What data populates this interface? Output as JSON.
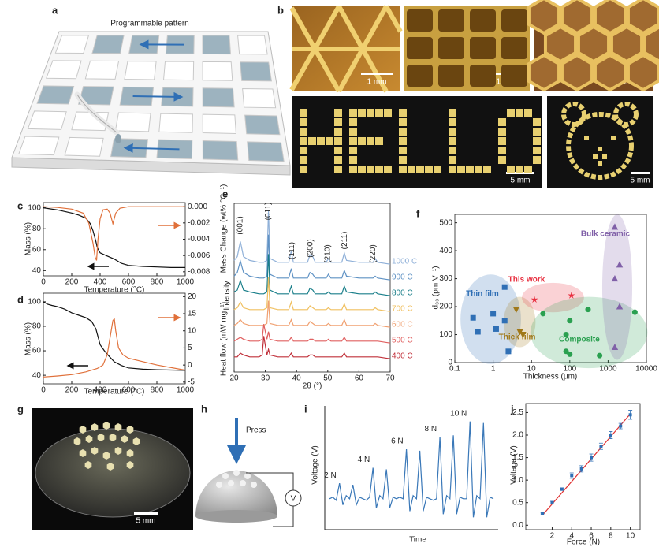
{
  "panel_labels": [
    "a",
    "b",
    "c",
    "d",
    "e",
    "f",
    "g",
    "h",
    "i",
    "j"
  ],
  "a": {
    "caption": "Programmable pattern"
  },
  "b": {
    "scale_bars": [
      "1 mm",
      "1 mm",
      "1 mm",
      "5 mm",
      "5 mm"
    ]
  },
  "g": {
    "scale_bar": "5 mm"
  },
  "h": {
    "press": "Press",
    "meter": "V"
  },
  "chart_data": [
    {
      "type": "line",
      "xlabel": "Temperature (°C)",
      "ylabel": "Mass (%)",
      "y2label": "Mass Change (wt% °C⁻¹)",
      "xlim": [
        0,
        1000
      ],
      "xticks": [
        0,
        200,
        400,
        600,
        800,
        1000
      ],
      "ylim": [
        35,
        105
      ],
      "yticks": [
        40,
        60,
        80,
        100
      ],
      "y2lim": [
        -0.0085,
        0.0005
      ],
      "y2ticks": [
        {
          "value": 0,
          "label": "0.000"
        },
        {
          "value": -0.002,
          "label": "-0.002"
        },
        {
          "value": -0.004,
          "label": "-0.004"
        },
        {
          "value": -0.006,
          "label": "-0.006"
        },
        {
          "value": -0.008,
          "label": "-0.008"
        }
      ],
      "series": [
        {
          "color": "#111111",
          "x": [
            0,
            50,
            100,
            200,
            250,
            300,
            330,
            350,
            370,
            380,
            400,
            450,
            500,
            550,
            600,
            700,
            800,
            900,
            1000
          ],
          "values": [
            100,
            99,
            98,
            95,
            93,
            90,
            85,
            78,
            68,
            62,
            57,
            54,
            51,
            47,
            45,
            44,
            43.5,
            43,
            43
          ]
        },
        {
          "color": "#e0703a",
          "axis": "y2",
          "x": [
            0,
            100,
            200,
            280,
            320,
            350,
            365,
            375,
            385,
            400,
            420,
            450,
            470,
            490,
            510,
            540,
            600,
            800,
            1000
          ],
          "values": [
            0,
            -0.0001,
            -0.0003,
            -0.0008,
            -0.002,
            -0.0045,
            -0.0062,
            -0.0066,
            -0.004,
            -0.0015,
            -0.0004,
            -0.0003,
            -0.0008,
            -0.0021,
            -0.0008,
            -0.0002,
            0,
            0,
            0
          ]
        }
      ]
    },
    {
      "type": "line",
      "xlabel": "Temperature (°C)",
      "ylabel": "Mass (%)",
      "y2label": "Heat flow (mW mg⁻¹)",
      "xlim": [
        0,
        1000
      ],
      "xticks": [
        0,
        200,
        400,
        600,
        800,
        1000
      ],
      "ylim": [
        33,
        107
      ],
      "yticks": [
        40,
        60,
        80,
        100
      ],
      "y2lim": [
        -5.5,
        21
      ],
      "y2ticks": [
        -5,
        0,
        5,
        10,
        15,
        20
      ],
      "series": [
        {
          "color": "#111111",
          "x": [
            0,
            30,
            60,
            100,
            150,
            200,
            250,
            300,
            340,
            370,
            400,
            430,
            460,
            500,
            550,
            600,
            700,
            800,
            1000
          ],
          "values": [
            100,
            98,
            97,
            96,
            94,
            91,
            89,
            87,
            84,
            78,
            65,
            60,
            56,
            51,
            48,
            46,
            45,
            44.5,
            44
          ]
        },
        {
          "color": "#e0703a",
          "axis": "y2",
          "x": [
            0,
            100,
            200,
            300,
            380,
            420,
            450,
            470,
            490,
            500,
            510,
            530,
            560,
            600,
            700,
            800,
            1000
          ],
          "values": [
            -3.5,
            -3.2,
            -2.8,
            -2,
            -1,
            0,
            3,
            8,
            13,
            13.5,
            10,
            5,
            3,
            2,
            1,
            0,
            -1.5
          ]
        }
      ]
    },
    {
      "type": "line",
      "xlabel": "2θ (°)",
      "ylabel": "Intensity",
      "xlim": [
        20,
        70
      ],
      "xticks": [
        20,
        30,
        40,
        50,
        60,
        70
      ],
      "x": [
        20,
        21,
        22,
        23,
        25,
        28,
        29,
        29.5,
        30.5,
        31,
        31.5,
        34,
        37.5,
        38.3,
        39,
        43.5,
        44.3,
        45.2,
        46,
        49.5,
        50.2,
        51,
        54.5,
        55.3,
        56,
        60,
        64.5,
        65.2,
        66,
        70
      ],
      "peak_labels": [
        {
          "text": "(001)",
          "x": 22
        },
        {
          "text": "(011)",
          "x": 31
        },
        {
          "text": "(111)",
          "x": 38.5
        },
        {
          "text": "(200)",
          "x": 44.5
        },
        {
          "text": "(210)",
          "x": 50
        },
        {
          "text": "(211)",
          "x": 55.5
        },
        {
          "text": "(220)",
          "x": 64.5
        }
      ],
      "series": [
        {
          "name": "1000 C",
          "color": "#8fb0d8",
          "values": [
            4,
            6,
            14,
            6,
            4,
            3,
            3,
            3,
            4,
            30,
            5,
            3,
            3,
            9,
            3,
            3,
            7,
            6,
            3,
            3,
            5,
            3,
            3,
            8,
            4,
            3,
            3,
            5,
            3,
            2
          ]
        },
        {
          "name": "900 C",
          "color": "#5f92c4",
          "values": [
            4,
            6,
            12,
            6,
            4,
            3,
            3,
            3,
            4,
            26,
            5,
            3,
            3,
            8,
            3,
            3,
            6,
            5,
            3,
            3,
            5,
            3,
            3,
            7,
            4,
            3,
            3,
            4,
            3,
            2
          ]
        },
        {
          "name": "800 C",
          "color": "#1a7f8a",
          "values": [
            4,
            5,
            10,
            5,
            4,
            3,
            3,
            3,
            4,
            24,
            5,
            3,
            3,
            7,
            3,
            3,
            6,
            5,
            3,
            3,
            4,
            3,
            3,
            7,
            4,
            3,
            3,
            4,
            3,
            2
          ]
        },
        {
          "name": "700 C",
          "color": "#f0c060",
          "values": [
            3,
            4,
            7,
            4,
            3,
            3,
            3,
            3,
            4,
            20,
            4,
            3,
            3,
            7,
            3,
            3,
            5,
            4,
            3,
            3,
            4,
            3,
            3,
            6,
            3,
            3,
            3,
            4,
            3,
            2
          ]
        },
        {
          "name": "600 C",
          "color": "#f0a070",
          "values": [
            3,
            4,
            6,
            4,
            3,
            3,
            3,
            3,
            4,
            16,
            4,
            3,
            3,
            6,
            3,
            3,
            5,
            4,
            3,
            3,
            4,
            3,
            3,
            6,
            3,
            3,
            3,
            4,
            3,
            2
          ]
        },
        {
          "name": "500 C",
          "color": "#e06060",
          "values": [
            3,
            4,
            5,
            4,
            3,
            3,
            4,
            12,
            4,
            8,
            4,
            3,
            3,
            5,
            3,
            3,
            4,
            4,
            3,
            3,
            4,
            3,
            3,
            5,
            3,
            3,
            3,
            3,
            3,
            2
          ]
        },
        {
          "name": "400 C",
          "color": "#c0303a",
          "values": [
            3,
            3,
            5,
            4,
            3,
            3,
            4,
            14,
            4,
            7,
            4,
            3,
            3,
            5,
            3,
            3,
            4,
            4,
            3,
            3,
            3,
            3,
            3,
            5,
            3,
            3,
            3,
            3,
            3,
            2
          ]
        }
      ]
    },
    {
      "type": "scatter",
      "xlabel": "Thickness (μm)",
      "ylabel": "d₃₃ (pm V⁻¹)",
      "xlog": true,
      "xlim": [
        0.1,
        10000
      ],
      "xticks": [
        0.1,
        1,
        10,
        100,
        1000,
        10000
      ],
      "ylim": [
        0,
        530
      ],
      "yticks": [
        0,
        100,
        200,
        300,
        400,
        500
      ],
      "series": [
        {
          "name": "Thin film",
          "color": "#2f6fb5",
          "marker": "square",
          "x": [
            0.3,
            0.4,
            1,
            1.2,
            2,
            2,
            2.5
          ],
          "values": [
            160,
            110,
            175,
            120,
            270,
            150,
            40
          ]
        },
        {
          "name": "Thick film",
          "color": "#a07818",
          "marker": "triangle-down",
          "x": [
            4,
            5,
            6
          ],
          "values": [
            190,
            110,
            100
          ]
        },
        {
          "name": "This work",
          "color": "#e83040",
          "marker": "star",
          "x": [
            12,
            110
          ],
          "values": [
            225,
            240
          ]
        },
        {
          "name": "Composite",
          "color": "#2aa050",
          "marker": "circle",
          "x": [
            20,
            80,
            80,
            100,
            100,
            300,
            600,
            5000
          ],
          "values": [
            175,
            100,
            40,
            30,
            150,
            190,
            25,
            180
          ]
        },
        {
          "name": "Bulk ceramic",
          "color": "#8060a8",
          "marker": "triangle-up",
          "x": [
            1500,
            1500,
            2000,
            2000,
            1500
          ],
          "values": [
            485,
            300,
            350,
            200,
            55
          ]
        }
      ]
    },
    {
      "type": "line",
      "xlabel": "Time",
      "ylabel": "Voltage (V)",
      "ylim": [
        -1,
        3
      ],
      "annotations": [
        {
          "text": "2 N",
          "x": 3
        },
        {
          "text": "4 N",
          "x": 13
        },
        {
          "text": "6 N",
          "x": 23
        },
        {
          "text": "8 N",
          "x": 33
        },
        {
          "text": "10 N",
          "x": 42
        }
      ],
      "series": [
        {
          "color": "#3a78b8",
          "values": [
            0,
            0.05,
            -0.05,
            0.5,
            -0.2,
            0.1,
            0,
            0.45,
            -0.2,
            0.05,
            0,
            -0.05,
            0.05,
            1.0,
            -0.3,
            0.1,
            0,
            0.95,
            -0.3,
            0.05,
            0,
            0.05,
            0,
            1.6,
            -0.4,
            0.1,
            0,
            1.55,
            -0.4,
            0.05,
            0,
            -0.05,
            0,
            2.0,
            -0.5,
            0.1,
            0,
            2.05,
            -0.5,
            0.05,
            0,
            0,
            2.5,
            -0.6,
            0.1,
            0,
            2.45,
            -0.6,
            0.05,
            0
          ]
        }
      ]
    },
    {
      "type": "scatter",
      "xlabel": "Force (N)",
      "ylabel": "Voltage (V)",
      "xlim": [
        -0.7,
        11
      ],
      "xticks": [
        2,
        4,
        6,
        8,
        10
      ],
      "ylim": [
        -0.1,
        2.7
      ],
      "yticks": [
        {
          "value": 0,
          "label": "0.0"
        },
        0.5,
        {
          "value": 1,
          "label": "1.0"
        },
        1.5,
        {
          "value": 2,
          "label": "2.0"
        },
        2.5
      ],
      "fit": {
        "color": "#e03030",
        "x": [
          1,
          10
        ],
        "values": [
          0.22,
          2.47
        ]
      },
      "series": [
        {
          "color": "#2f6fb5",
          "marker": "square",
          "x": [
            1,
            2,
            3,
            4,
            5,
            6,
            7,
            8,
            9,
            10
          ],
          "values": [
            0.25,
            0.5,
            0.8,
            1.1,
            1.25,
            1.5,
            1.75,
            2.0,
            2.2,
            2.45
          ],
          "errors": [
            0.02,
            0.03,
            0.03,
            0.06,
            0.07,
            0.08,
            0.07,
            0.08,
            0.06,
            0.1
          ]
        }
      ]
    }
  ]
}
